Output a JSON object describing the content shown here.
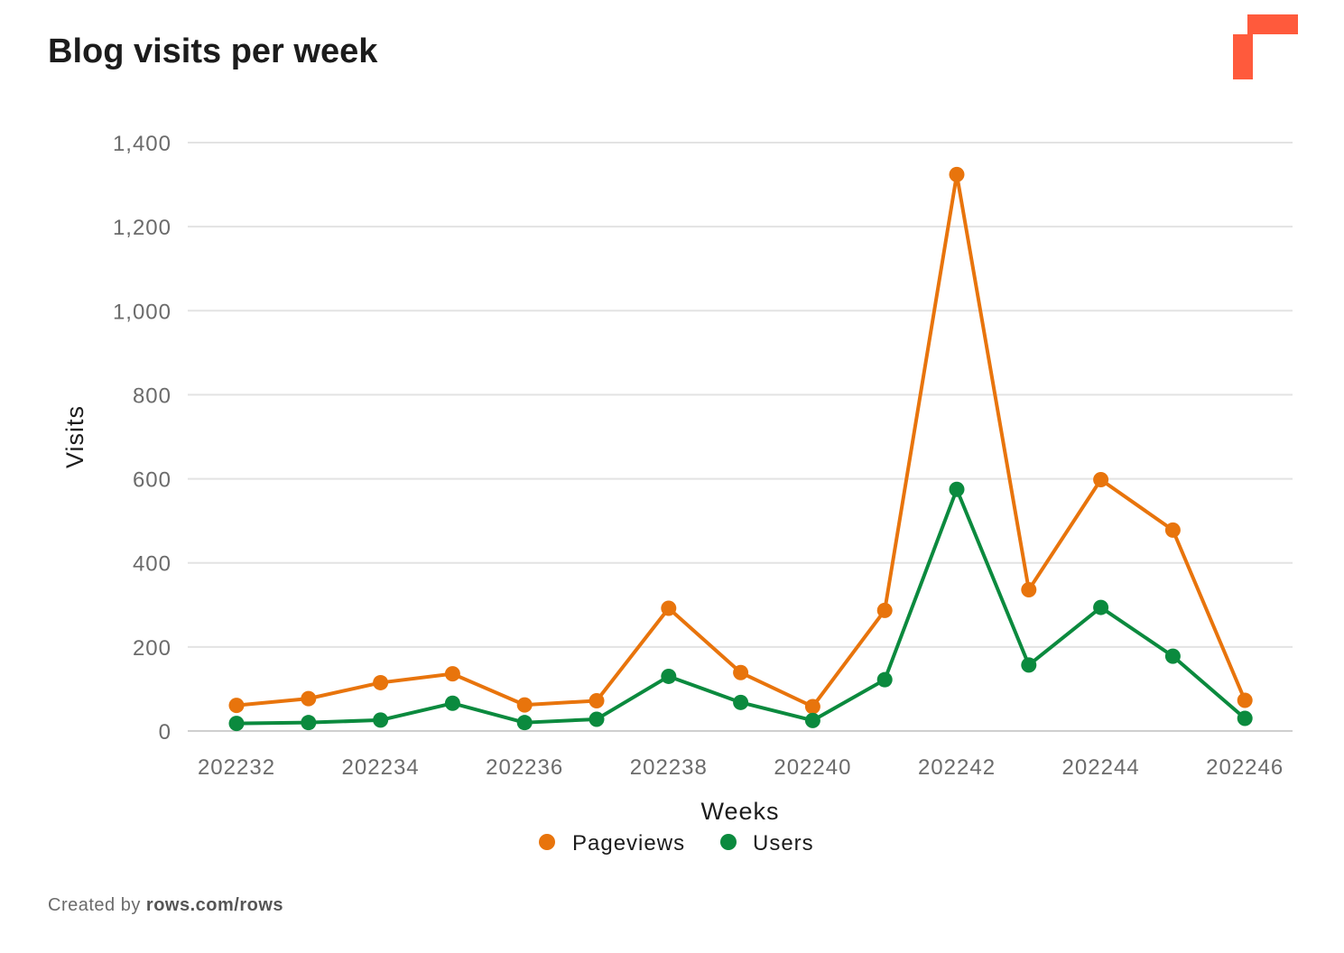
{
  "header": {
    "title": "Blog visits per week"
  },
  "footer": {
    "prefix": "Created by",
    "link": "rows.com/rows"
  },
  "colors": {
    "pageviews": "#E8740C",
    "users": "#0B8A3E",
    "grid": "#e3e3e3",
    "logo": "#FF5A3C"
  },
  "chart_data": {
    "type": "line",
    "title": "Blog visits per week",
    "xlabel": "Weeks",
    "ylabel": "Visits",
    "ylim": [
      0,
      1400
    ],
    "yticks": [
      0,
      200,
      400,
      600,
      800,
      1000,
      1200,
      1400
    ],
    "ytick_labels": [
      "0",
      "200",
      "400",
      "600",
      "800",
      "1,000",
      "1,200",
      "1,400"
    ],
    "categories": [
      "202232",
      "202233",
      "202234",
      "202235",
      "202236",
      "202237",
      "202238",
      "202239",
      "202240",
      "202241",
      "202242",
      "202243",
      "202244",
      "202245",
      "202246"
    ],
    "xtick_labels": [
      "202232",
      "202234",
      "202236",
      "202238",
      "202240",
      "202242",
      "202244",
      "202246"
    ],
    "series": [
      {
        "name": "Pageviews",
        "values": [
          61,
          77,
          115,
          136,
          62,
          72,
          292,
          139,
          58,
          287,
          1324,
          336,
          598,
          478,
          73
        ]
      },
      {
        "name": "Users",
        "values": [
          18,
          20,
          26,
          66,
          20,
          28,
          130,
          68,
          25,
          122,
          575,
          157,
          294,
          178,
          30
        ]
      }
    ],
    "legend": {
      "position": "bottom",
      "entries": [
        "Pageviews",
        "Users"
      ]
    },
    "grid": true
  }
}
